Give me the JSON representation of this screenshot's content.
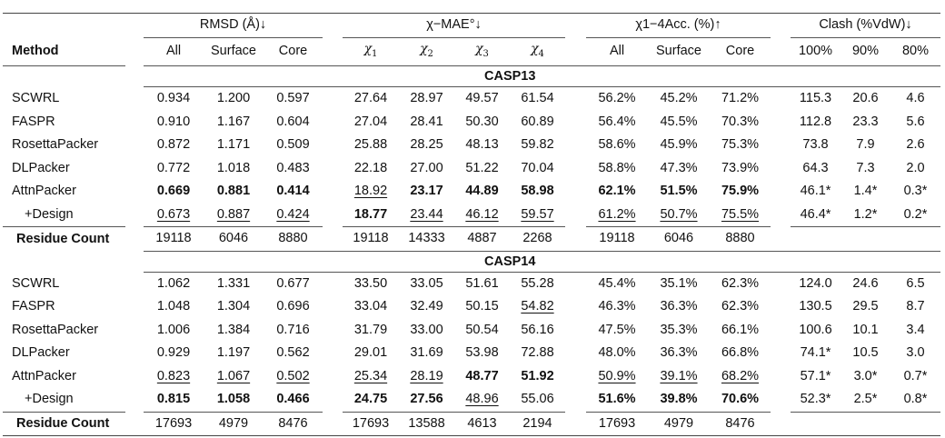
{
  "header": {
    "method_label": "Method",
    "groups": [
      {
        "label": "RMSD (Å)↓",
        "columns": [
          "All",
          "Surface",
          "Core"
        ]
      },
      {
        "label": "χ−MAE°↓",
        "columns": [
          "χ1",
          "χ2",
          "χ3",
          "χ4"
        ]
      },
      {
        "label": "χ1−4Acc. (%)↑",
        "columns": [
          "All",
          "Surface",
          "Core"
        ]
      },
      {
        "label": "Clash (%VdW)↓",
        "columns": [
          "100%",
          "90%",
          "80%"
        ]
      }
    ]
  },
  "residue_label": "Residue Count",
  "style_legend": {
    "b": "bold (best)",
    "u": "underlined (second best)",
    "-": "plain"
  },
  "sections": [
    {
      "title": "CASP13",
      "rows": [
        {
          "method": "SCWRL",
          "values": [
            "0.934",
            "1.200",
            "0.597",
            "27.64",
            "28.97",
            "49.57",
            "61.54",
            "56.2%",
            "45.2%",
            "71.2%",
            "115.3",
            "20.6",
            "4.6"
          ],
          "styles": "-------------"
        },
        {
          "method": "FASPR",
          "values": [
            "0.910",
            "1.167",
            "0.604",
            "27.04",
            "28.41",
            "50.30",
            "60.89",
            "56.4%",
            "45.5%",
            "70.3%",
            "112.8",
            "23.3",
            "5.6"
          ],
          "styles": "-------------"
        },
        {
          "method": "RosettaPacker",
          "values": [
            "0.872",
            "1.171",
            "0.509",
            "25.88",
            "28.25",
            "48.13",
            "59.82",
            "58.6%",
            "45.9%",
            "75.3%",
            "73.8",
            "7.9",
            "2.6"
          ],
          "styles": "-------------"
        },
        {
          "method": "DLPacker",
          "values": [
            "0.772",
            "1.018",
            "0.483",
            "22.18",
            "27.00",
            "51.22",
            "70.04",
            "58.8%",
            "47.3%",
            "73.9%",
            "64.3",
            "7.3",
            "2.0"
          ],
          "styles": "-------------"
        },
        {
          "method": "AttnPacker",
          "values": [
            "0.669",
            "0.881",
            "0.414",
            "18.92",
            "23.17",
            "44.89",
            "58.98",
            "62.1%",
            "51.5%",
            "75.9%",
            "46.1*",
            "1.4*",
            "0.3*"
          ],
          "styles": "bbbubbbbbb---"
        },
        {
          "method": "+Design",
          "values": [
            "0.673",
            "0.887",
            "0.424",
            "18.77",
            "23.44",
            "46.12",
            "59.57",
            "61.2%",
            "50.7%",
            "75.5%",
            "46.4*",
            "1.2*",
            "0.2*"
          ],
          "styles": "uuubuuuuuu---"
        }
      ],
      "residue_count": [
        "19118",
        "6046",
        "8880",
        "19118",
        "14333",
        "4887",
        "2268",
        "19118",
        "6046",
        "8880"
      ]
    },
    {
      "title": "CASP14",
      "rows": [
        {
          "method": "SCWRL",
          "values": [
            "1.062",
            "1.331",
            "0.677",
            "33.50",
            "33.05",
            "51.61",
            "55.28",
            "45.4%",
            "35.1%",
            "62.3%",
            "124.0",
            "24.6",
            "6.5"
          ],
          "styles": "-------------"
        },
        {
          "method": "FASPR",
          "values": [
            "1.048",
            "1.304",
            "0.696",
            "33.04",
            "32.49",
            "50.15",
            "54.82",
            "46.3%",
            "36.3%",
            "62.3%",
            "130.5",
            "29.5",
            "8.7"
          ],
          "styles": "------u------"
        },
        {
          "method": "RosettaPacker",
          "values": [
            "1.006",
            "1.384",
            "0.716",
            "31.79",
            "33.00",
            "50.54",
            "56.16",
            "47.5%",
            "35.3%",
            "66.1%",
            "100.6",
            "10.1",
            "3.4"
          ],
          "styles": "-------------"
        },
        {
          "method": "DLPacker",
          "values": [
            "0.929",
            "1.197",
            "0.562",
            "29.01",
            "31.69",
            "53.98",
            "72.88",
            "48.0%",
            "36.3%",
            "66.8%",
            "74.1*",
            "10.5",
            "3.0"
          ],
          "styles": "-------------"
        },
        {
          "method": "AttnPacker",
          "values": [
            "0.823",
            "1.067",
            "0.502",
            "25.34",
            "28.19",
            "48.77",
            "51.92",
            "50.9%",
            "39.1%",
            "68.2%",
            "57.1*",
            "3.0*",
            "0.7*"
          ],
          "styles": "uuuuubbuuu---"
        },
        {
          "method": "+Design",
          "values": [
            "0.815",
            "1.058",
            "0.466",
            "24.75",
            "27.56",
            "48.96",
            "55.06",
            "51.6%",
            "39.8%",
            "70.6%",
            "52.3*",
            "2.5*",
            "0.8*"
          ],
          "styles": "bbbbbu-bbb---"
        }
      ],
      "residue_count": [
        "17693",
        "4979",
        "8476",
        "17693",
        "13588",
        "4613",
        "2194",
        "17693",
        "4979",
        "8476"
      ]
    }
  ]
}
